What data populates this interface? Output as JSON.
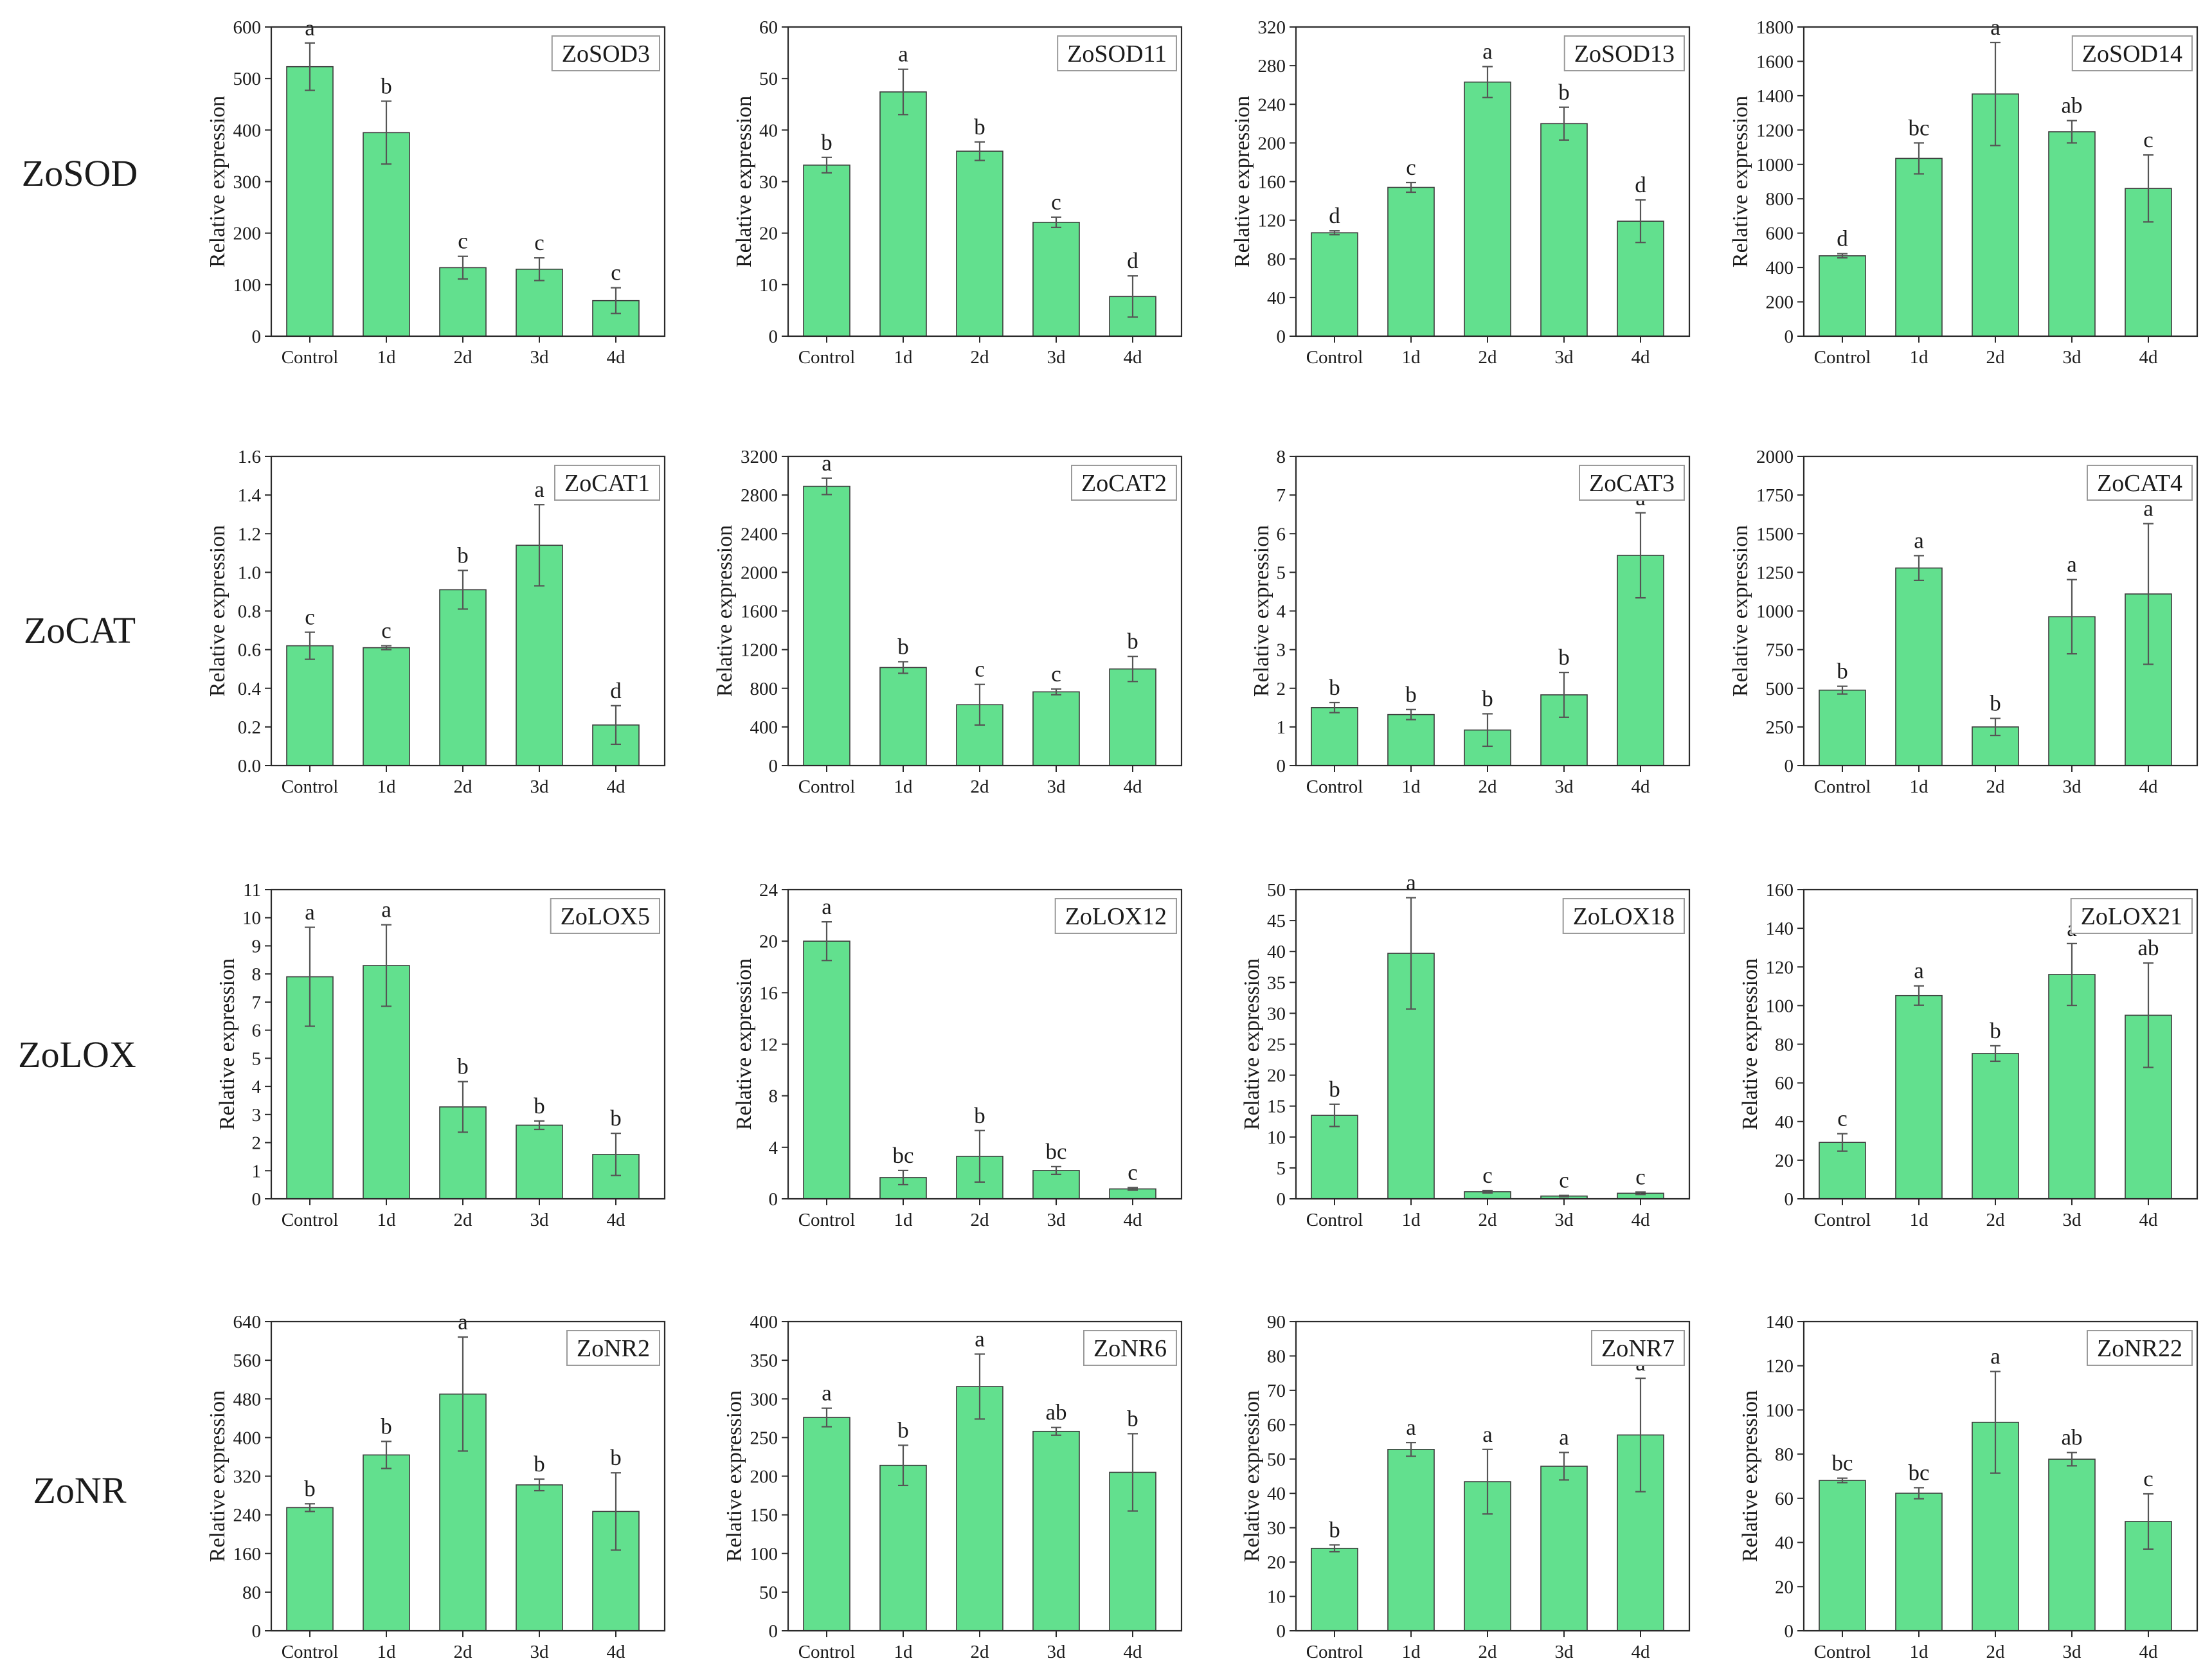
{
  "figure": {
    "bar_color": "#62E08E",
    "bar_stroke": "#3C3C3C",
    "axis_color": "#2A2A2A",
    "error_color": "#555555",
    "title_box_stroke": "#9A9A9A"
  },
  "row_labels": [
    "ZoSOD",
    "ZoCAT",
    "ZoLOX",
    "ZoNR"
  ],
  "chart_data": [
    {
      "type": "bar",
      "title": "ZoSOD3",
      "xlabel": "",
      "ylabel": "Relative expression",
      "categories": [
        "Control",
        "1d",
        "2d",
        "3d",
        "4d"
      ],
      "values": [
        523,
        395,
        133,
        130,
        69
      ],
      "errors": [
        46,
        61,
        22,
        22,
        25
      ],
      "letters": [
        "a",
        "b",
        "c",
        "c",
        "c"
      ],
      "ylim": [
        0,
        600
      ],
      "yticks": [
        "0",
        "100",
        "200",
        "300",
        "400",
        "500",
        "600"
      ]
    },
    {
      "type": "bar",
      "title": "ZoSOD11",
      "xlabel": "",
      "ylabel": "Relative expression",
      "categories": [
        "Control",
        "1d",
        "2d",
        "3d",
        "4d"
      ],
      "values": [
        33.2,
        47.4,
        35.9,
        22.1,
        7.7
      ],
      "errors": [
        1.5,
        4.4,
        1.8,
        1.0,
        4.0
      ],
      "letters": [
        "b",
        "a",
        "b",
        "c",
        "d"
      ],
      "ylim": [
        0,
        60
      ],
      "yticks": [
        "0",
        "10",
        "20",
        "30",
        "40",
        "50",
        "60"
      ]
    },
    {
      "type": "bar",
      "title": "ZoSOD13",
      "xlabel": "",
      "ylabel": "Relative expression",
      "categories": [
        "Control",
        "1d",
        "2d",
        "3d",
        "4d"
      ],
      "values": [
        107,
        154,
        263,
        220,
        119
      ],
      "errors": [
        2,
        5,
        16,
        17,
        22
      ],
      "letters": [
        "d",
        "c",
        "a",
        "b",
        "d"
      ],
      "ylim": [
        0,
        320
      ],
      "yticks": [
        "0",
        "40",
        "80",
        "120",
        "160",
        "200",
        "240",
        "280",
        "320"
      ]
    },
    {
      "type": "bar",
      "title": "ZoSOD14",
      "xlabel": "",
      "ylabel": "Relative expression",
      "categories": [
        "Control",
        "1d",
        "2d",
        "3d",
        "4d"
      ],
      "values": [
        468,
        1035,
        1410,
        1190,
        860
      ],
      "errors": [
        12,
        90,
        300,
        65,
        195
      ],
      "letters": [
        "d",
        "bc",
        "a",
        "ab",
        "c"
      ],
      "ylim": [
        0,
        1800
      ],
      "yticks": [
        "0",
        "200",
        "400",
        "600",
        "800",
        "1000",
        "1200",
        "1400",
        "1600",
        "1800"
      ]
    },
    {
      "type": "bar",
      "title": "ZoCAT1",
      "xlabel": "",
      "ylabel": "Relative expression",
      "categories": [
        "Control",
        "1d",
        "2d",
        "3d",
        "4d"
      ],
      "values": [
        0.62,
        0.61,
        0.91,
        1.14,
        0.21
      ],
      "errors": [
        0.07,
        0.01,
        0.1,
        0.21,
        0.1
      ],
      "letters": [
        "c",
        "c",
        "b",
        "a",
        "d"
      ],
      "ylim": [
        0,
        1.6
      ],
      "yticks": [
        "0.0",
        "0.2",
        "0.4",
        "0.6",
        "0.8",
        "1.0",
        "1.2",
        "1.4",
        "1.6"
      ]
    },
    {
      "type": "bar",
      "title": "ZoCAT2",
      "xlabel": "",
      "ylabel": "Relative expression",
      "categories": [
        "Control",
        "1d",
        "2d",
        "3d",
        "4d"
      ],
      "values": [
        2890,
        1015,
        630,
        763,
        1000
      ],
      "errors": [
        85,
        60,
        210,
        30,
        130
      ],
      "letters": [
        "a",
        "b",
        "c",
        "c",
        "b"
      ],
      "ylim": [
        0,
        3200
      ],
      "yticks": [
        "0",
        "400",
        "800",
        "1200",
        "1600",
        "2000",
        "2400",
        "2800",
        "3200"
      ]
    },
    {
      "type": "bar",
      "title": "ZoCAT3",
      "xlabel": "",
      "ylabel": "Relative expression",
      "categories": [
        "Control",
        "1d",
        "2d",
        "3d",
        "4d"
      ],
      "values": [
        1.5,
        1.32,
        0.92,
        1.83,
        5.44
      ],
      "errors": [
        0.13,
        0.13,
        0.42,
        0.58,
        1.1
      ],
      "letters": [
        "b",
        "b",
        "b",
        "b",
        "a"
      ],
      "ylim": [
        0,
        8
      ],
      "yticks": [
        "0",
        "1",
        "2",
        "3",
        "4",
        "5",
        "6",
        "7",
        "8"
      ]
    },
    {
      "type": "bar",
      "title": "ZoCAT4",
      "xlabel": "",
      "ylabel": "Relative expression",
      "categories": [
        "Control",
        "1d",
        "2d",
        "3d",
        "4d"
      ],
      "values": [
        488,
        1278,
        250,
        963,
        1110
      ],
      "errors": [
        25,
        80,
        55,
        240,
        455
      ],
      "letters": [
        "b",
        "a",
        "b",
        "a",
        "a"
      ],
      "ylim": [
        0,
        2000
      ],
      "yticks": [
        "0",
        "250",
        "500",
        "750",
        "1000",
        "1250",
        "1500",
        "1750",
        "2000"
      ]
    },
    {
      "type": "bar",
      "title": "ZoLOX5",
      "xlabel": "",
      "ylabel": "Relative expression",
      "categories": [
        "Control",
        "1d",
        "2d",
        "3d",
        "4d"
      ],
      "values": [
        7.9,
        8.3,
        3.27,
        2.62,
        1.58
      ],
      "errors": [
        1.76,
        1.45,
        0.9,
        0.15,
        0.75
      ],
      "letters": [
        "a",
        "a",
        "b",
        "b",
        "b"
      ],
      "ylim": [
        0,
        11
      ],
      "yticks": [
        "0",
        "1",
        "2",
        "3",
        "4",
        "5",
        "6",
        "7",
        "8",
        "9",
        "10",
        "11"
      ]
    },
    {
      "type": "bar",
      "title": "ZoLOX12",
      "xlabel": "",
      "ylabel": "Relative expression",
      "categories": [
        "Control",
        "1d",
        "2d",
        "3d",
        "4d"
      ],
      "values": [
        20.0,
        1.65,
        3.3,
        2.2,
        0.77
      ],
      "errors": [
        1.5,
        0.55,
        2.0,
        0.3,
        0.1
      ],
      "letters": [
        "a",
        "bc",
        "b",
        "bc",
        "c"
      ],
      "ylim": [
        0,
        24
      ],
      "yticks": [
        "0",
        "4",
        "8",
        "12",
        "16",
        "20",
        "24"
      ]
    },
    {
      "type": "bar",
      "title": "ZoLOX18",
      "xlabel": "",
      "ylabel": "Relative expression",
      "categories": [
        "Control",
        "1d",
        "2d",
        "3d",
        "4d"
      ],
      "values": [
        13.5,
        39.7,
        1.15,
        0.45,
        0.9
      ],
      "errors": [
        1.8,
        9.0,
        0.2,
        0.1,
        0.2
      ],
      "letters": [
        "b",
        "a",
        "c",
        "c",
        "c"
      ],
      "ylim": [
        0,
        50
      ],
      "yticks": [
        "0",
        "5",
        "10",
        "15",
        "20",
        "25",
        "30",
        "35",
        "40",
        "45",
        "50"
      ]
    },
    {
      "type": "bar",
      "title": "ZoLOX21",
      "xlabel": "",
      "ylabel": "Relative expression",
      "categories": [
        "Control",
        "1d",
        "2d",
        "3d",
        "4d"
      ],
      "values": [
        29.2,
        105.2,
        75.2,
        116.1,
        95
      ],
      "errors": [
        4.5,
        5,
        4,
        16,
        27
      ],
      "letters": [
        "c",
        "a",
        "b",
        "a",
        "ab"
      ],
      "ylim": [
        0,
        160
      ],
      "yticks": [
        "0",
        "20",
        "40",
        "60",
        "80",
        "100",
        "120",
        "140",
        "160"
      ]
    },
    {
      "type": "bar",
      "title": "ZoNR2",
      "xlabel": "",
      "ylabel": "Relative expression",
      "categories": [
        "Control",
        "1d",
        "2d",
        "3d",
        "4d"
      ],
      "values": [
        255,
        364,
        490,
        302,
        247
      ],
      "errors": [
        8,
        28,
        118,
        12,
        80
      ],
      "letters": [
        "b",
        "b",
        "a",
        "b",
        "b"
      ],
      "ylim": [
        0,
        640
      ],
      "yticks": [
        "0",
        "80",
        "160",
        "240",
        "320",
        "400",
        "480",
        "560",
        "640"
      ]
    },
    {
      "type": "bar",
      "title": "ZoNR6",
      "xlabel": "",
      "ylabel": "Relative expression",
      "categories": [
        "Control",
        "1d",
        "2d",
        "3d",
        "4d"
      ],
      "values": [
        276,
        214,
        316,
        258,
        205
      ],
      "errors": [
        12,
        26,
        42,
        5,
        50
      ],
      "letters": [
        "a",
        "b",
        "a",
        "ab",
        "b"
      ],
      "ylim": [
        0,
        400
      ],
      "yticks": [
        "0",
        "50",
        "100",
        "150",
        "200",
        "250",
        "300",
        "350",
        "400"
      ]
    },
    {
      "type": "bar",
      "title": "ZoNR7",
      "xlabel": "",
      "ylabel": "Relative expression",
      "categories": [
        "Control",
        "1d",
        "2d",
        "3d",
        "4d"
      ],
      "values": [
        24,
        52.8,
        43.4,
        47.9,
        57
      ],
      "errors": [
        1,
        2,
        9.4,
        4,
        16.5
      ],
      "letters": [
        "b",
        "a",
        "a",
        "a",
        "a"
      ],
      "ylim": [
        0,
        90
      ],
      "yticks": [
        "0",
        "10",
        "20",
        "30",
        "40",
        "50",
        "60",
        "70",
        "80",
        "90"
      ]
    },
    {
      "type": "bar",
      "title": "ZoNR22",
      "xlabel": "",
      "ylabel": "Relative expression",
      "categories": [
        "Control",
        "1d",
        "2d",
        "3d",
        "4d"
      ],
      "values": [
        68.1,
        62.3,
        94.4,
        77.7,
        49.5
      ],
      "errors": [
        1,
        2.5,
        23,
        3,
        12.5
      ],
      "letters": [
        "bc",
        "bc",
        "a",
        "ab",
        "c"
      ],
      "ylim": [
        0,
        140
      ],
      "yticks": [
        "0",
        "20",
        "40",
        "60",
        "80",
        "100",
        "120",
        "140"
      ]
    }
  ]
}
